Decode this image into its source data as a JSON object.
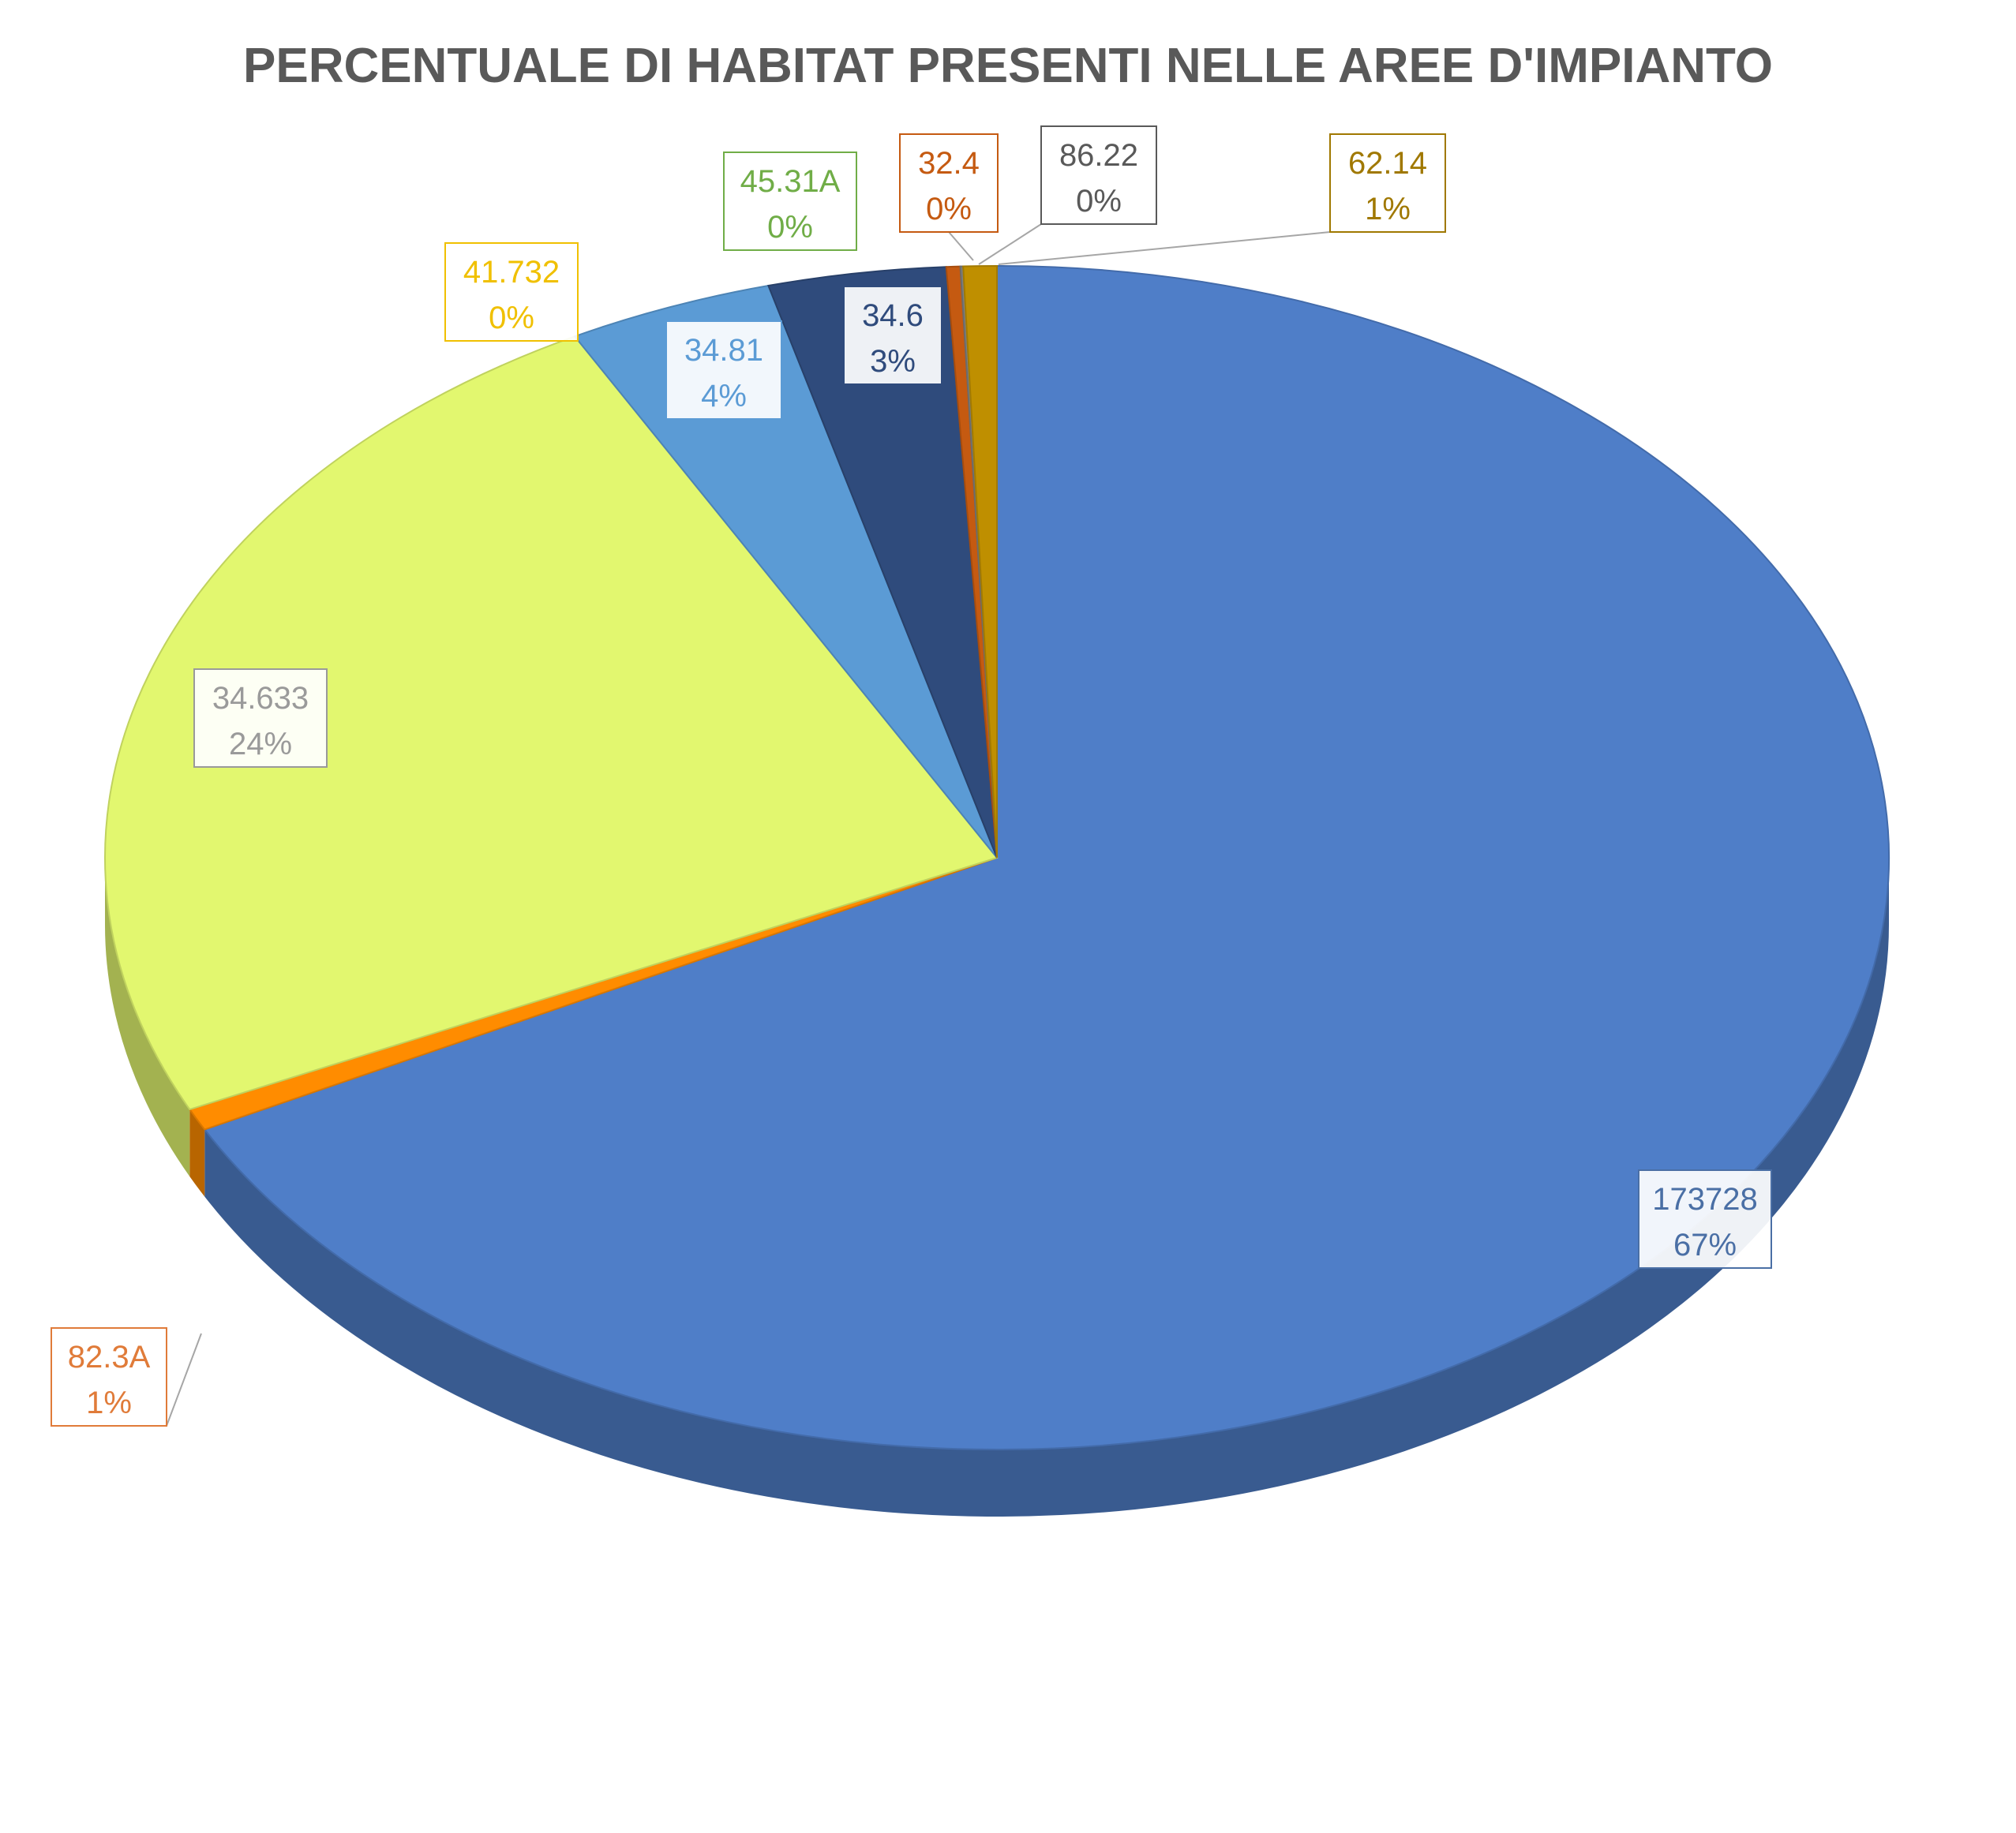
{
  "chart_data": {
    "type": "pie",
    "title": "PERCENTUALE DI HABITAT PRESENTI NELLE AREE D'IMPIANTO",
    "three_d": true,
    "legend": "none",
    "slices": [
      {
        "name": "173728",
        "percent_label": "67%",
        "value": 67.0,
        "color": "#4f7ec8",
        "label_color": "#4a6fa5"
      },
      {
        "name": "82.3A",
        "percent_label": "1%",
        "value": 0.6,
        "color": "#ff8c00",
        "label_color": "#e07b39"
      },
      {
        "name": "34.633",
        "percent_label": "24%",
        "value": 24.0,
        "color": "#e2f76f",
        "label_color": "#9a9a9a"
      },
      {
        "name": "41.732",
        "percent_label": "0%",
        "value": 0.0,
        "color": "#f2c200",
        "label_color": "#f0c000"
      },
      {
        "name": "34.81",
        "percent_label": "4%",
        "value": 3.7,
        "color": "#5b9bd5",
        "label_color": "#5b9bd5"
      },
      {
        "name": "45.31A",
        "percent_label": "0%",
        "value": 0.0,
        "color": "#70ad47",
        "label_color": "#70ad47"
      },
      {
        "name": "34.6",
        "percent_label": "3%",
        "value": 3.2,
        "color": "#2f4b7c",
        "label_color": "#2f4b7c"
      },
      {
        "name": "32.4",
        "percent_label": "0%",
        "value": 0.25,
        "color": "#c55a11",
        "label_color": "#c55a11"
      },
      {
        "name": "86.22",
        "percent_label": "0%",
        "value": 0.05,
        "color": "#7f7f7f",
        "label_color": "#595959"
      },
      {
        "name": "62.14",
        "percent_label": "1%",
        "value": 0.6,
        "color": "#bf8f00",
        "label_color": "#a07800"
      }
    ]
  }
}
